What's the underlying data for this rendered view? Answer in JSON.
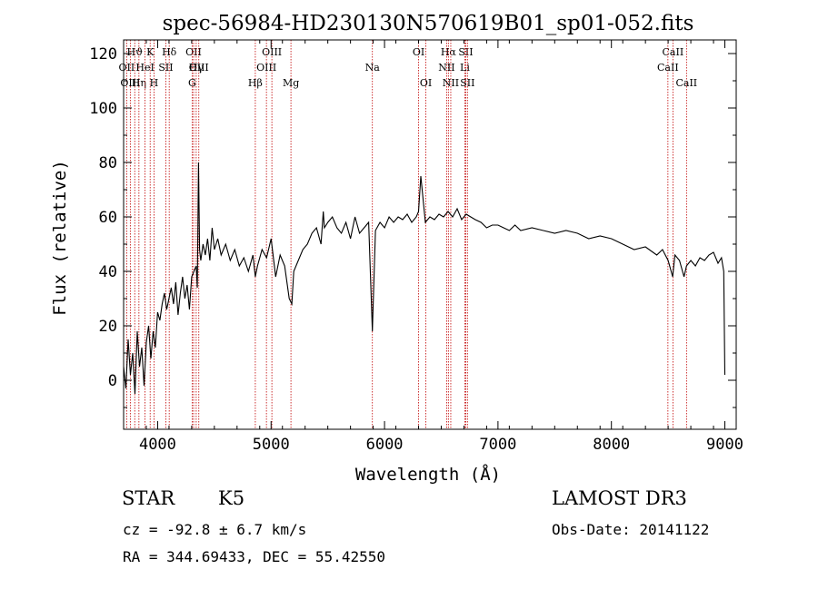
{
  "chart_data": {
    "type": "line",
    "title": "spec-56984-HD230130N570619B01_sp01-052.fits",
    "xlabel": "Wavelength (Å)",
    "ylabel": "Flux (relative)",
    "xlim": [
      3700,
      9100
    ],
    "ylim": [
      -18,
      125
    ],
    "x_ticks": [
      4000,
      5000,
      6000,
      7000,
      8000,
      9000
    ],
    "y_ticks": [
      0,
      20,
      40,
      60,
      80,
      100,
      120
    ],
    "series": [
      {
        "name": "flux",
        "x": [
          3700,
          3720,
          3740,
          3760,
          3780,
          3800,
          3820,
          3840,
          3860,
          3880,
          3900,
          3920,
          3940,
          3960,
          3980,
          4000,
          4020,
          4040,
          4060,
          4080,
          4100,
          4120,
          4140,
          4160,
          4180,
          4200,
          4220,
          4240,
          4260,
          4280,
          4300,
          4320,
          4340,
          4350,
          4360,
          4370,
          4380,
          4400,
          4420,
          4440,
          4460,
          4480,
          4500,
          4530,
          4560,
          4600,
          4640,
          4680,
          4720,
          4760,
          4800,
          4840,
          4861,
          4880,
          4920,
          4960,
          5000,
          5040,
          5080,
          5120,
          5160,
          5183,
          5200,
          5240,
          5280,
          5320,
          5360,
          5400,
          5440,
          5460,
          5470,
          5500,
          5540,
          5580,
          5620,
          5660,
          5700,
          5740,
          5780,
          5820,
          5860,
          5893,
          5920,
          5960,
          6000,
          6040,
          6080,
          6120,
          6160,
          6200,
          6240,
          6280,
          6300,
          6320,
          6360,
          6400,
          6440,
          6480,
          6520,
          6560,
          6600,
          6640,
          6680,
          6720,
          6760,
          6800,
          6850,
          6900,
          6950,
          7000,
          7050,
          7100,
          7150,
          7200,
          7300,
          7400,
          7500,
          7600,
          7700,
          7800,
          7900,
          8000,
          8100,
          8200,
          8300,
          8400,
          8450,
          8500,
          8540,
          8560,
          8600,
          8640,
          8662,
          8700,
          8740,
          8780,
          8820,
          8860,
          8900,
          8940,
          8970,
          8990,
          9000
        ],
        "y": [
          5,
          -3,
          15,
          2,
          10,
          -5,
          18,
          5,
          12,
          -2,
          14,
          20,
          8,
          18,
          12,
          25,
          22,
          28,
          32,
          26,
          30,
          34,
          28,
          36,
          24,
          32,
          38,
          30,
          35,
          26,
          38,
          40,
          42,
          34,
          80,
          48,
          44,
          50,
          46,
          52,
          44,
          56,
          48,
          52,
          46,
          50,
          44,
          48,
          42,
          45,
          40,
          46,
          38,
          42,
          48,
          45,
          52,
          38,
          46,
          42,
          30,
          28,
          40,
          44,
          48,
          50,
          54,
          56,
          50,
          62,
          56,
          58,
          60,
          56,
          54,
          58,
          52,
          60,
          54,
          56,
          58,
          18,
          55,
          58,
          56,
          60,
          58,
          60,
          59,
          61,
          58,
          60,
          62,
          75,
          58,
          60,
          59,
          61,
          60,
          62,
          60,
          63,
          59,
          61,
          60,
          59,
          58,
          56,
          57,
          57,
          56,
          55,
          57,
          55,
          56,
          55,
          54,
          55,
          54,
          52,
          53,
          52,
          50,
          48,
          49,
          46,
          48,
          44,
          38,
          46,
          44,
          38,
          42,
          44,
          42,
          45,
          44,
          46,
          47,
          43,
          45,
          40,
          2
        ]
      }
    ],
    "lines": [
      {
        "name": "Hϑ",
        "wavelength": 3798,
        "row": 0
      },
      {
        "name": "OII",
        "wavelength": 3727,
        "row": 1
      },
      {
        "name": "OIII",
        "wavelength": 3759,
        "row": 2
      },
      {
        "name": "Hη",
        "wavelength": 3835,
        "row": 2
      },
      {
        "name": "HeI",
        "wavelength": 3889,
        "row": 1
      },
      {
        "name": "K",
        "wavelength": 3934,
        "row": 0
      },
      {
        "name": "H",
        "wavelength": 3968,
        "row": 2
      },
      {
        "name": "SII",
        "wavelength": 4072,
        "row": 1
      },
      {
        "name": "Hδ",
        "wavelength": 4102,
        "row": 0
      },
      {
        "name": "OII",
        "wavelength": 4317,
        "row": 0
      },
      {
        "name": "OIII",
        "wavelength": 4363,
        "row": 1
      },
      {
        "name": "G",
        "wavelength": 4304,
        "row": 2
      },
      {
        "name": "Hγ",
        "wavelength": 4340,
        "row": 1
      },
      {
        "name": "Hβ",
        "wavelength": 4861,
        "row": 2
      },
      {
        "name": "OIII",
        "wavelength": 4959,
        "row": 1
      },
      {
        "name": "OIII",
        "wavelength": 5007,
        "row": 0
      },
      {
        "name": "Mg",
        "wavelength": 5175,
        "row": 2
      },
      {
        "name": "Na",
        "wavelength": 5893,
        "row": 1
      },
      {
        "name": "OI",
        "wavelength": 6300,
        "row": 0
      },
      {
        "name": "OI",
        "wavelength": 6364,
        "row": 2
      },
      {
        "name": "Hα",
        "wavelength": 6563,
        "row": 0
      },
      {
        "name": "NII",
        "wavelength": 6548,
        "row": 1
      },
      {
        "name": "NII",
        "wavelength": 6584,
        "row": 2
      },
      {
        "name": "SII",
        "wavelength": 6716,
        "row": 0
      },
      {
        "name": "Li",
        "wavelength": 6708,
        "row": 1
      },
      {
        "name": "SII",
        "wavelength": 6731,
        "row": 2
      },
      {
        "name": "CaII",
        "wavelength": 8542,
        "row": 0
      },
      {
        "name": "CaII",
        "wavelength": 8498,
        "row": 1
      },
      {
        "name": "CaII",
        "wavelength": 8662,
        "row": 2
      }
    ],
    "colors": {
      "spectrum": "#000000",
      "lines": "#c00000",
      "axes": "#000000"
    }
  },
  "info": {
    "class": "STAR",
    "subclass": "K5",
    "survey": "LAMOST DR3",
    "cz": "cz = -92.8 ± 6.7 km/s",
    "obs_date": "Obs-Date: 20141122",
    "coords": "RA = 344.69433, DEC =  55.42550"
  }
}
